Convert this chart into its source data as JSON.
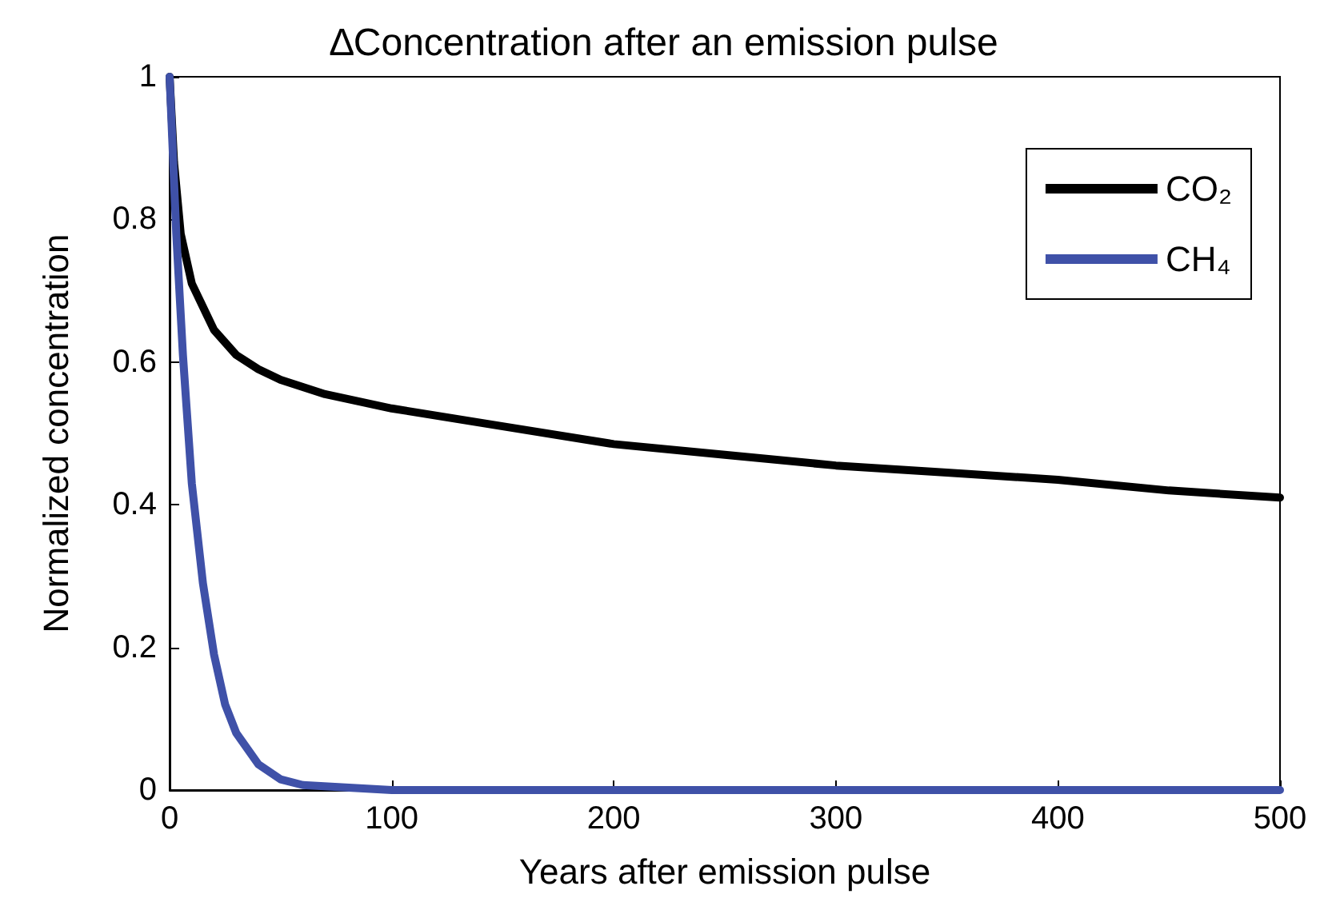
{
  "chart_data": {
    "type": "line",
    "title": "∆Concentration after an emission pulse",
    "xlabel": "Years after emission pulse",
    "ylabel": "Normalized concentration",
    "xlim": [
      0,
      500
    ],
    "ylim": [
      0,
      1
    ],
    "xticks": [
      0,
      100,
      200,
      300,
      400,
      500
    ],
    "yticks": [
      0,
      0.2,
      0.4,
      0.6,
      0.8,
      1
    ],
    "legend": "top right",
    "marker": "none",
    "line_style": "solid",
    "series": [
      {
        "name": "CO₂",
        "color": "#000000",
        "x": [
          0,
          2,
          5,
          10,
          20,
          30,
          40,
          50,
          70,
          100,
          150,
          200,
          250,
          300,
          350,
          400,
          450,
          500
        ],
        "values": [
          1,
          0.88,
          0.78,
          0.71,
          0.645,
          0.61,
          0.59,
          0.575,
          0.555,
          0.535,
          0.51,
          0.485,
          0.47,
          0.455,
          0.445,
          0.435,
          0.42,
          0.41
        ]
      },
      {
        "name": "CH₄",
        "color": "#3f51a8",
        "x": [
          0,
          3,
          6,
          10,
          15,
          20,
          25,
          30,
          40,
          50,
          60,
          100,
          200,
          300,
          400,
          500
        ],
        "values": [
          1,
          0.78,
          0.61,
          0.43,
          0.29,
          0.19,
          0.12,
          0.08,
          0.036,
          0.015,
          0.007,
          0,
          0,
          0,
          0,
          0
        ]
      }
    ]
  }
}
